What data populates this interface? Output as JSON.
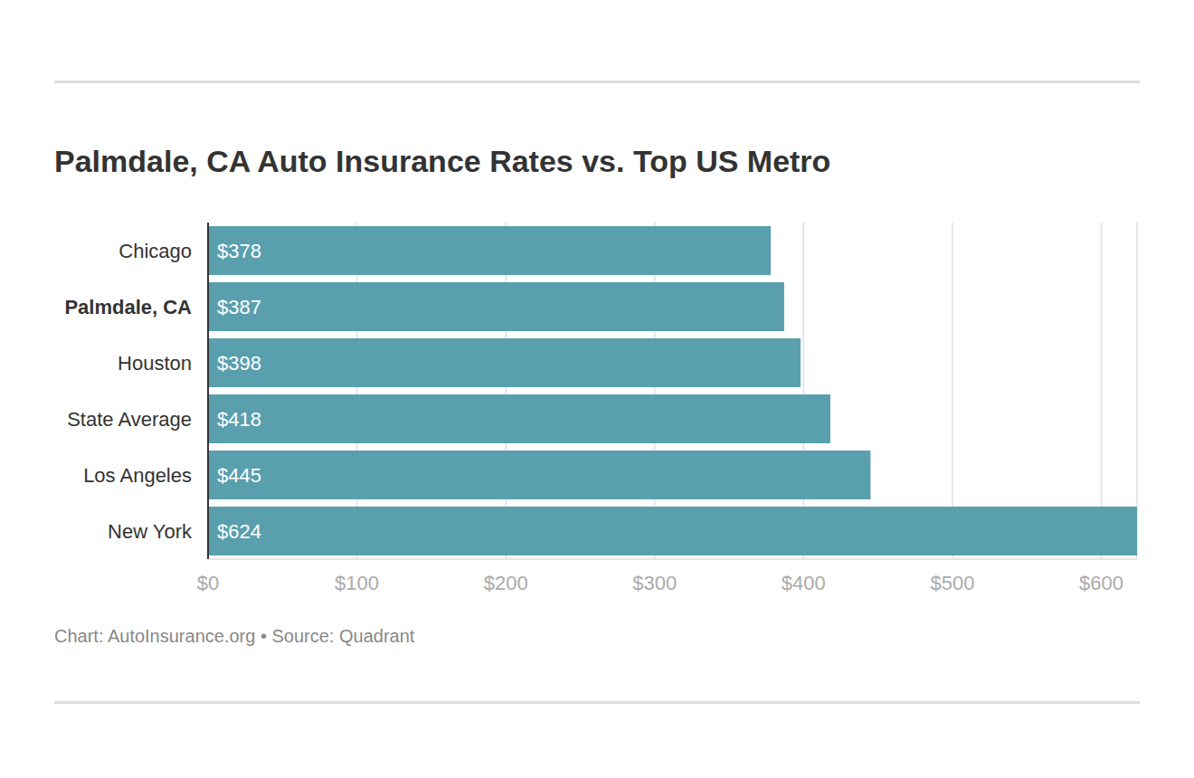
{
  "chart_data": {
    "type": "bar",
    "orientation": "horizontal",
    "title": "Palmdale, CA Auto Insurance Rates vs. Top US Metro",
    "source": "Chart: AutoInsurance.org • Source: Quadrant",
    "categories": [
      "Chicago",
      "Palmdale, CA",
      "Houston",
      "State Average",
      "Los Angeles",
      "New York"
    ],
    "values": [
      378,
      387,
      398,
      418,
      445,
      624
    ],
    "value_labels": [
      "$378",
      "$387",
      "$398",
      "$418",
      "$445",
      "$624"
    ],
    "color": "#5a9fae",
    "xlim": [
      0,
      624
    ],
    "xticks": [
      {
        "value": 0,
        "label": "$0"
      },
      {
        "value": 100,
        "label": "$100"
      },
      {
        "value": 200,
        "label": "$200"
      },
      {
        "value": 300,
        "label": "$300"
      },
      {
        "value": 400,
        "label": "$400"
      },
      {
        "value": 500,
        "label": "$500"
      },
      {
        "value": 600,
        "label": "$600"
      }
    ],
    "grid": true,
    "data_labels": true
  }
}
